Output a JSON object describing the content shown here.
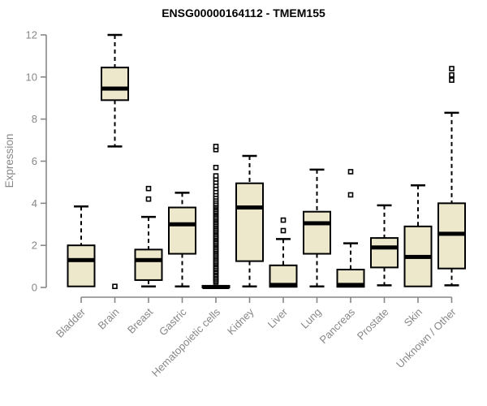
{
  "style": {
    "box_fill": "#ede8cc",
    "box_stroke": "#000000",
    "median_color": "#000000",
    "axis_color": "#878787",
    "tick_label_color": "#878787",
    "title_color": "#000000",
    "background": "#ffffff",
    "outlier_fill": "#ffffff"
  },
  "chart_data": {
    "type": "boxplot",
    "title": "ENSG00000164112 - TMEM155",
    "xlabel": "",
    "ylabel": "Expression",
    "ylim": [
      0,
      12
    ],
    "yticks": [
      0,
      2,
      4,
      6,
      8,
      10,
      12
    ],
    "grid": false,
    "legend": "none",
    "categories": [
      "Bladder",
      "Brain",
      "Breast",
      "Gastric",
      "Hematopoietic cells",
      "Kidney",
      "Liver",
      "Lung",
      "Pancreas",
      "Prostate",
      "Skin",
      "Unknown / Other"
    ],
    "boxes": [
      {
        "category": "Bladder",
        "low": 0.05,
        "q1": 0.05,
        "median": 1.3,
        "q3": 2.0,
        "high": 3.85,
        "outliers": []
      },
      {
        "category": "Brain",
        "low": 6.7,
        "q1": 8.9,
        "median": 9.45,
        "q3": 10.45,
        "high": 12.0,
        "outliers": [
          0.05
        ]
      },
      {
        "category": "Breast",
        "low": 0.05,
        "q1": 0.35,
        "median": 1.3,
        "q3": 1.8,
        "high": 3.35,
        "outliers": [
          4.2,
          4.7
        ]
      },
      {
        "category": "Gastric",
        "low": 0.05,
        "q1": 1.6,
        "median": 3.0,
        "q3": 3.8,
        "high": 4.5,
        "outliers": []
      },
      {
        "category": "Hematopoietic cells",
        "low": 0.0,
        "q1": 0.0,
        "median": 0.02,
        "q3": 0.08,
        "high": 0.15,
        "outliers": [
          0.25,
          0.32,
          0.4,
          0.47,
          0.55,
          0.62,
          0.7,
          0.77,
          0.85,
          0.92,
          1.0,
          1.08,
          1.15,
          1.22,
          1.3,
          1.38,
          1.45,
          1.52,
          1.6,
          1.68,
          1.75,
          1.82,
          1.9,
          1.98,
          2.05,
          2.12,
          2.2,
          2.28,
          2.35,
          2.42,
          2.5,
          2.58,
          2.65,
          2.72,
          2.8,
          2.88,
          2.95,
          3.02,
          3.1,
          3.18,
          3.25,
          3.32,
          3.4,
          3.48,
          3.55,
          3.62,
          3.7,
          3.78,
          3.85,
          3.92,
          4.0,
          4.1,
          4.2,
          4.3,
          4.42,
          4.55,
          4.7,
          4.85,
          5.0,
          5.15,
          5.3,
          5.7,
          6.55,
          6.7
        ]
      },
      {
        "category": "Kidney",
        "low": 0.05,
        "q1": 1.25,
        "median": 3.8,
        "q3": 4.95,
        "high": 6.25,
        "outliers": []
      },
      {
        "category": "Liver",
        "low": 0.03,
        "q1": 0.03,
        "median": 0.12,
        "q3": 1.05,
        "high": 2.3,
        "outliers": [
          2.7,
          3.2
        ]
      },
      {
        "category": "Lung",
        "low": 0.05,
        "q1": 1.6,
        "median": 3.05,
        "q3": 3.6,
        "high": 5.6,
        "outliers": []
      },
      {
        "category": "Pancreas",
        "low": 0.03,
        "q1": 0.03,
        "median": 0.12,
        "q3": 0.85,
        "high": 2.1,
        "outliers": [
          4.4,
          5.5
        ]
      },
      {
        "category": "Prostate",
        "low": 0.1,
        "q1": 0.95,
        "median": 1.9,
        "q3": 2.35,
        "high": 3.9,
        "outliers": []
      },
      {
        "category": "Skin",
        "low": 0.05,
        "q1": 0.05,
        "median": 1.45,
        "q3": 2.9,
        "high": 4.85,
        "outliers": []
      },
      {
        "category": "Unknown / Other",
        "low": 0.1,
        "q1": 0.9,
        "median": 2.55,
        "q3": 4.0,
        "high": 8.3,
        "outliers": [
          9.85,
          10.1,
          10.4
        ]
      }
    ]
  }
}
